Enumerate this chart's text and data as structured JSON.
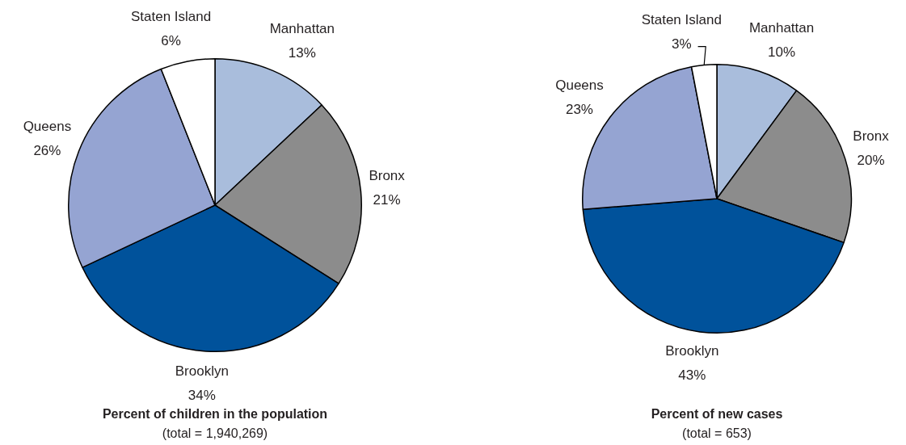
{
  "chart_data": [
    {
      "type": "pie",
      "title": "Percent of children in the population",
      "subtitle": "(total = 1,940,269)",
      "categories": [
        "Manhattan",
        "Bronx",
        "Brooklyn",
        "Queens",
        "Staten Island"
      ],
      "values": [
        13,
        21,
        34,
        26,
        6
      ],
      "value_labels": [
        "13%",
        "21%",
        "34%",
        "26%",
        "6%"
      ],
      "colors": [
        "#a9bddc",
        "#8c8c8c",
        "#00529b",
        "#95a4d2",
        "#ffffff"
      ]
    },
    {
      "type": "pie",
      "title": "Percent of new cases",
      "subtitle": "(total = 653)",
      "categories": [
        "Manhattan",
        "Bronx",
        "Brooklyn",
        "Queens",
        "Staten Island"
      ],
      "values": [
        10,
        20,
        43,
        23,
        3
      ],
      "value_labels": [
        "10%",
        "20%",
        "43%",
        "23%",
        "3%"
      ],
      "colors": [
        "#a9bddc",
        "#8c8c8c",
        "#00529b",
        "#95a4d2",
        "#ffffff"
      ]
    }
  ]
}
